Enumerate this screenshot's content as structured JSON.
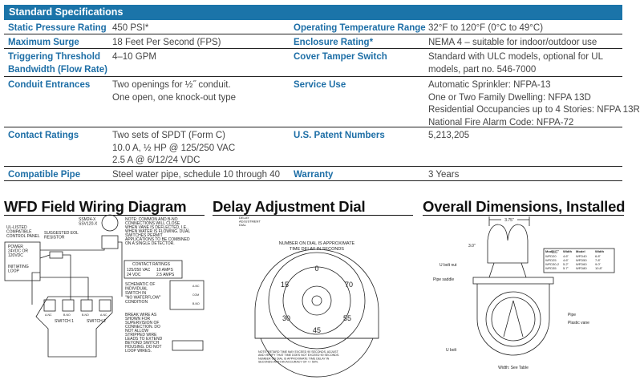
{
  "specs": {
    "title": "Standard Specifications",
    "left": [
      {
        "label": "Static Pressure Rating",
        "value": [
          "450 PSI*"
        ]
      },
      {
        "label": "Maximum Surge",
        "value": [
          "18 Feet Per Second (FPS)"
        ]
      },
      {
        "label": "Triggering Threshold Bandwidth (Flow Rate)",
        "value": [
          "4–10 GPM"
        ]
      },
      {
        "label": "Conduit Entrances",
        "value": [
          "Two openings for ½˝ conduit.",
          "One open, one knock-out type"
        ]
      },
      {
        "label": "Contact Ratings",
        "value": [
          "Two sets of SPDT (Form C)",
          "10.0 A, ½ HP @ 125/250 VAC",
          "2.5 A @ 6/12/24 VDC"
        ]
      },
      {
        "label": "Compatible Pipe",
        "value": [
          "Steel water pipe, schedule 10 through 40"
        ]
      }
    ],
    "right": [
      {
        "label": "Operating Temperature Range",
        "value": [
          "32°F to 120°F (0°C to 49°C)"
        ]
      },
      {
        "label": "Enclosure Rating*",
        "value": [
          "NEMA 4 – suitable for indoor/outdoor use"
        ]
      },
      {
        "label": "Cover Tamper Switch",
        "value": [
          "Standard with ULC models, optional for UL",
          "models, part no. 546-7000"
        ]
      },
      {
        "label": "Service Use",
        "value": [
          "Automatic Sprinkler: NFPA-13",
          "One or Two Family Dwelling: NFPA 13D",
          "Residential Occupancies up to 4 Stories: NFPA 13R",
          "National Fire Alarm Code: NFPA-72"
        ]
      },
      {
        "label": "U.S. Patent Numbers",
        "value": [
          "5,213,205"
        ]
      },
      {
        "label": "Warranty",
        "value": [
          "3 Years"
        ]
      }
    ]
  },
  "wiring": {
    "title": "WFD Field Wiring Diagram",
    "panel": [
      "UL-LISTED",
      "COMPATIBLE",
      "CONTROL PANEL"
    ],
    "power": [
      "POWER",
      "24VDC OR",
      "120VDC"
    ],
    "loop": [
      "INITIATING",
      "LOOP"
    ],
    "resistor": [
      "SUGGESTED EOL",
      "RESISTOR"
    ],
    "bell": [
      "SSM24-X",
      "SSV120-X"
    ],
    "note": [
      "NOTE: COMMON AND B-NO",
      "CONNECTIONS WILL CLOSE",
      "WHEN VANE IS DEFLECTED, I.E.,",
      "WHEN WATER IS FLOWING. DUAL",
      "SWITCHES PERMIT",
      "APPLICATIONS TO BE COMBINED",
      "ON A SINGLE DETECTOR."
    ],
    "ratings_title": "CONTACT RATINGS",
    "ratings": [
      [
        "125/250 VAC",
        "10 AMPS"
      ],
      [
        "24 VDC",
        "2.5 AMPS"
      ]
    ],
    "schematic": [
      "SCHEMATIC OF",
      "INDIVIDUAL",
      "SWITCH IN",
      "\"NO WATERFLOW\"",
      "CONDITION"
    ],
    "schematic_terms": [
      "A-NC",
      "COM",
      "B-NO"
    ],
    "break": [
      "BREAK WIRE AS",
      "SHOWN FOR",
      "SUPERVISION OF",
      "CONNECTION. DO",
      "NOT ALLOW",
      "STRIPPED WIRE",
      "LEADS TO EXTEND",
      "BEYOND SWITCH",
      "HOUSING. DO NOT",
      "LOOP WIRES."
    ],
    "terminals": [
      "A-NC",
      "B-NO",
      "B-NO",
      "A-NC"
    ],
    "switches": [
      "SWITCH 1",
      "SWITCH 2"
    ],
    "com": "COM"
  },
  "dial": {
    "title": "Delay Adjustment Dial",
    "callout": [
      "DELAY",
      "ADJUSTMENT",
      "DIAL"
    ],
    "arc_text": [
      "NUMBER ON DIAL IS APPROXIMATE",
      "TIME DELAY IN SECONDS"
    ],
    "numbers": [
      "0",
      "15",
      "30",
      "45",
      "55",
      "70"
    ],
    "note": [
      "NOTE: RETARD TIME MAY EXCEED 90 SECONDS. ADJUST",
      "AND VERIFY THAT TIME DOES NOT EXCEED 90 SECONDS.",
      "NUMBER ON DIAL IS APPROXIMATE TIME DELAY IN",
      "SECONDS WITH AN ACCURACY OF +/- 50%."
    ]
  },
  "dims": {
    "title": "Overall Dimensions, Installed",
    "width_top": "3.75\"",
    "height": "3.0\"",
    "gap": "1.6\"",
    "labels": {
      "ubolt_nut": "U bolt nut",
      "saddle": "Pipe saddle",
      "pipe": "Pipe",
      "vane": "Plastic vane",
      "ubolt": "U bolt",
      "width": "Width: See Table"
    },
    "table_header": [
      "Model",
      "Width",
      "Model",
      "Width"
    ],
    "table": [
      [
        "WFD20",
        "4.6\"",
        "WFD40",
        "6.8\""
      ],
      [
        "WFD25",
        "4.6\"",
        "WFD50",
        "7.8\""
      ],
      [
        "WFD30-2",
        "5.2\"",
        "WFD60",
        "9.0\""
      ],
      [
        "WFD35",
        "5.7\"",
        "WFD80",
        "10.8\""
      ]
    ]
  }
}
